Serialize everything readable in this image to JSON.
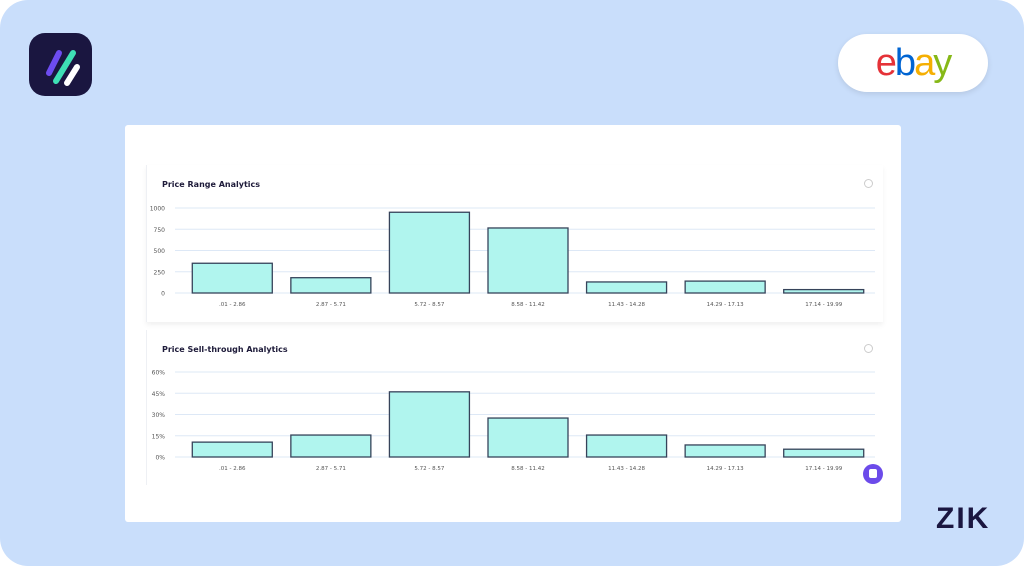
{
  "brand": {
    "app_logo": "slash-stripes-logo",
    "marketplace_logo": "ebay",
    "ebay_letters": [
      "e",
      "b",
      "a",
      "y"
    ],
    "watermark": "ZIK"
  },
  "colors": {
    "bar_fill": "#b0f5ee",
    "bar_stroke": "#36435a",
    "grid": "#dde8f6",
    "background": "#c9defb"
  },
  "chart_data": [
    {
      "type": "bar",
      "title": "Price Range Analytics",
      "categories": [
        ".01 - 2.86",
        "2.87 - 5.71",
        "5.72 - 8.57",
        "8.58 - 11.42",
        "11.43 - 14.28",
        "14.29 - 17.13",
        "17.14 - 19.99"
      ],
      "values": [
        350,
        180,
        950,
        765,
        130,
        140,
        40
      ],
      "yticks": [
        "0",
        "250",
        "500",
        "750",
        "1000"
      ],
      "ylim": [
        0,
        1000
      ],
      "grid": true
    },
    {
      "type": "bar",
      "title": "Price Sell-through Analytics",
      "categories": [
        ".01 - 2.86",
        "2.87 - 5.71",
        "5.72 - 8.57",
        "8.58 - 11.42",
        "11.43 - 14.28",
        "14.29 - 17.13",
        "17.14 - 19.99"
      ],
      "values": [
        10.5,
        15.5,
        46,
        27.5,
        15.5,
        8.5,
        5.5
      ],
      "yticks": [
        "0%",
        "15%",
        "30%",
        "45%",
        "60%"
      ],
      "ylim": [
        0,
        60
      ],
      "grid": true
    }
  ]
}
